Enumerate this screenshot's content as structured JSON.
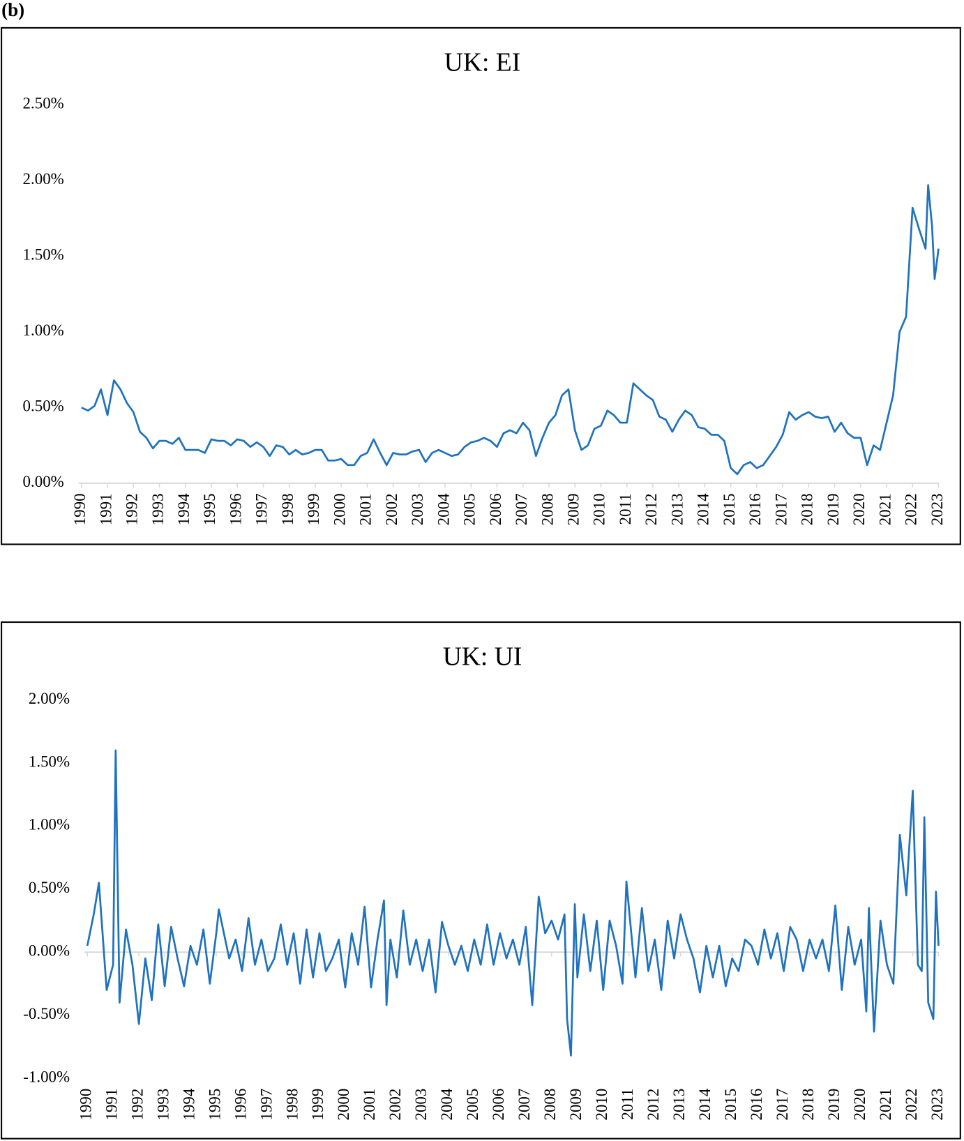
{
  "panel_label": "(b)",
  "chart_data": [
    {
      "type": "line",
      "title": "UK: EI",
      "color": "#1f72bd",
      "x": [
        1990,
        1990.25,
        1990.5,
        1990.75,
        1991,
        1991.25,
        1991.5,
        1991.75,
        1992,
        1992.25,
        1992.5,
        1992.75,
        1993,
        1993.25,
        1993.5,
        1993.75,
        1994,
        1994.25,
        1994.5,
        1994.75,
        1995,
        1995.25,
        1995.5,
        1995.75,
        1996,
        1996.25,
        1996.5,
        1996.75,
        1997,
        1997.25,
        1997.5,
        1997.75,
        1998,
        1998.25,
        1998.5,
        1998.75,
        1999,
        1999.25,
        1999.5,
        1999.75,
        2000,
        2000.25,
        2000.5,
        2000.75,
        2001,
        2001.25,
        2001.5,
        2001.75,
        2002,
        2002.25,
        2002.5,
        2002.75,
        2003,
        2003.25,
        2003.5,
        2003.75,
        2004,
        2004.25,
        2004.5,
        2004.75,
        2005,
        2005.25,
        2005.5,
        2005.75,
        2006,
        2006.25,
        2006.5,
        2006.75,
        2007,
        2007.25,
        2007.5,
        2007.75,
        2008,
        2008.25,
        2008.5,
        2008.75,
        2009,
        2009.25,
        2009.5,
        2009.75,
        2010,
        2010.25,
        2010.5,
        2010.75,
        2011,
        2011.25,
        2011.5,
        2011.75,
        2012,
        2012.25,
        2012.5,
        2012.75,
        2013,
        2013.25,
        2013.5,
        2013.75,
        2014,
        2014.25,
        2014.5,
        2014.75,
        2015,
        2015.25,
        2015.5,
        2015.75,
        2016,
        2016.25,
        2016.5,
        2016.75,
        2017,
        2017.25,
        2017.5,
        2017.75,
        2018,
        2018.25,
        2018.5,
        2018.75,
        2019,
        2019.25,
        2019.5,
        2019.75,
        2020,
        2020.25,
        2020.5,
        2020.75,
        2021,
        2021.25,
        2021.5,
        2021.75,
        2022,
        2022.25,
        2022.5,
        2022.6,
        2022.75,
        2022.85,
        2023
      ],
      "values": [
        0.5,
        0.48,
        0.51,
        0.62,
        0.45,
        0.68,
        0.62,
        0.53,
        0.47,
        0.34,
        0.3,
        0.23,
        0.28,
        0.28,
        0.26,
        0.3,
        0.22,
        0.22,
        0.22,
        0.2,
        0.29,
        0.28,
        0.28,
        0.25,
        0.29,
        0.28,
        0.24,
        0.27,
        0.24,
        0.18,
        0.25,
        0.24,
        0.19,
        0.22,
        0.19,
        0.2,
        0.22,
        0.22,
        0.15,
        0.15,
        0.16,
        0.12,
        0.12,
        0.18,
        0.2,
        0.29,
        0.2,
        0.12,
        0.2,
        0.19,
        0.19,
        0.21,
        0.22,
        0.14,
        0.2,
        0.22,
        0.2,
        0.18,
        0.19,
        0.24,
        0.27,
        0.28,
        0.3,
        0.28,
        0.24,
        0.33,
        0.35,
        0.33,
        0.4,
        0.35,
        0.18,
        0.3,
        0.4,
        0.45,
        0.58,
        0.62,
        0.35,
        0.22,
        0.25,
        0.36,
        0.38,
        0.48,
        0.45,
        0.4,
        0.4,
        0.66,
        0.62,
        0.58,
        0.55,
        0.44,
        0.42,
        0.34,
        0.42,
        0.48,
        0.45,
        0.37,
        0.36,
        0.32,
        0.32,
        0.28,
        0.1,
        0.06,
        0.12,
        0.14,
        0.1,
        0.12,
        0.18,
        0.24,
        0.32,
        0.47,
        0.42,
        0.45,
        0.47,
        0.44,
        0.43,
        0.44,
        0.34,
        0.4,
        0.33,
        0.3,
        0.3,
        0.12,
        0.25,
        0.22,
        0.4,
        0.58,
        1.0,
        1.1,
        1.82,
        1.68,
        1.55,
        1.97,
        1.7,
        1.35,
        1.55
      ],
      "xlim": [
        1990,
        2023
      ],
      "xticks": [
        1990,
        1991,
        1992,
        1993,
        1994,
        1995,
        1996,
        1997,
        1998,
        1999,
        2000,
        2001,
        2002,
        2003,
        2004,
        2005,
        2006,
        2007,
        2008,
        2009,
        2010,
        2011,
        2012,
        2013,
        2014,
        2015,
        2016,
        2017,
        2018,
        2019,
        2020,
        2021,
        2022,
        2023
      ],
      "ylim": [
        0,
        2.5
      ],
      "yticks": [
        {
          "value": 0,
          "label": "0.00%"
        },
        {
          "value": 0.5,
          "label": "0.50%"
        },
        {
          "value": 1,
          "label": "1.00%"
        },
        {
          "value": 1.5,
          "label": "1.50%"
        },
        {
          "value": 2,
          "label": "2.00%"
        },
        {
          "value": 2.5,
          "label": "2.50%"
        }
      ]
    },
    {
      "type": "line",
      "title": "UK: UI",
      "color": "#1f72bd",
      "x": [
        1990,
        1990.25,
        1990.45,
        1990.75,
        1991,
        1991.1,
        1991.25,
        1991.5,
        1991.75,
        1992,
        1992.25,
        1992.5,
        1992.75,
        1993,
        1993.25,
        1993.5,
        1993.75,
        1994,
        1994.25,
        1994.5,
        1994.75,
        1995,
        1995.1,
        1995.5,
        1995.75,
        1996,
        1996.25,
        1996.5,
        1996.75,
        1997,
        1997.25,
        1997.5,
        1997.75,
        1998,
        1998.25,
        1998.5,
        1998.75,
        1999,
        1999.25,
        1999.5,
        1999.75,
        2000,
        2000.25,
        2000.5,
        2000.75,
        2001,
        2001.25,
        2001.5,
        2001.6,
        2001.75,
        2002,
        2002.25,
        2002.5,
        2002.75,
        2003,
        2003.25,
        2003.5,
        2003.75,
        2004,
        2004.25,
        2004.5,
        2004.75,
        2005,
        2005.25,
        2005.5,
        2005.75,
        2006,
        2006.25,
        2006.5,
        2006.75,
        2007,
        2007.25,
        2007.5,
        2007.75,
        2008,
        2008.25,
        2008.5,
        2008.6,
        2008.75,
        2008.9,
        2009,
        2009.25,
        2009.5,
        2009.75,
        2010,
        2010.25,
        2010.5,
        2010.75,
        2010.9,
        2011.25,
        2011.5,
        2011.75,
        2012,
        2012.25,
        2012.5,
        2012.75,
        2013,
        2013.25,
        2013.5,
        2013.75,
        2014,
        2014.25,
        2014.5,
        2014.75,
        2015,
        2015.25,
        2015.5,
        2015.75,
        2016,
        2016.25,
        2016.5,
        2016.75,
        2017,
        2017.25,
        2017.5,
        2017.75,
        2018,
        2018.25,
        2018.5,
        2018.75,
        2019,
        2019.25,
        2019.5,
        2019.75,
        2020,
        2020.2,
        2020.3,
        2020.5,
        2020.75,
        2021,
        2021.25,
        2021.5,
        2021.75,
        2022,
        2022.2,
        2022.35,
        2022.45,
        2022.6,
        2022.8,
        2022.9,
        2023
      ],
      "values": [
        0.05,
        0.3,
        0.55,
        -0.3,
        -0.1,
        1.6,
        -0.4,
        0.18,
        -0.1,
        -0.57,
        -0.05,
        -0.38,
        0.22,
        -0.27,
        0.2,
        -0.05,
        -0.27,
        0.05,
        -0.1,
        0.18,
        -0.25,
        0.15,
        0.34,
        -0.05,
        0.1,
        -0.15,
        0.27,
        -0.1,
        0.1,
        -0.15,
        -0.05,
        0.22,
        -0.1,
        0.15,
        -0.25,
        0.18,
        -0.2,
        0.15,
        -0.15,
        -0.05,
        0.1,
        -0.28,
        0.15,
        -0.1,
        0.36,
        -0.28,
        0.1,
        0.41,
        -0.42,
        0.1,
        -0.2,
        0.33,
        -0.1,
        0.1,
        -0.15,
        0.1,
        -0.32,
        0.24,
        0.05,
        -0.1,
        0.05,
        -0.15,
        0.1,
        -0.1,
        0.22,
        -0.1,
        0.15,
        -0.05,
        0.1,
        -0.1,
        0.2,
        -0.42,
        0.44,
        0.15,
        0.25,
        0.1,
        0.3,
        -0.53,
        -0.82,
        0.38,
        -0.2,
        0.3,
        -0.15,
        0.25,
        -0.3,
        0.25,
        0.05,
        -0.25,
        0.56,
        -0.2,
        0.35,
        -0.15,
        0.1,
        -0.3,
        0.25,
        -0.05,
        0.3,
        0.1,
        -0.05,
        -0.32,
        0.05,
        -0.2,
        0.05,
        -0.27,
        -0.05,
        -0.15,
        0.1,
        0.05,
        -0.1,
        0.18,
        -0.05,
        0.15,
        -0.15,
        0.2,
        0.1,
        -0.15,
        0.1,
        -0.05,
        0.1,
        -0.15,
        0.37,
        -0.3,
        0.2,
        -0.1,
        0.1,
        -0.47,
        0.35,
        -0.63,
        0.25,
        -0.1,
        -0.25,
        0.93,
        0.45,
        1.28,
        -0.1,
        -0.15,
        1.07,
        -0.4,
        -0.53,
        0.48,
        0.05
      ],
      "xlim": [
        1990,
        2023
      ],
      "xticks": [
        1990,
        1991,
        1992,
        1993,
        1994,
        1995,
        1996,
        1997,
        1998,
        1999,
        2000,
        2001,
        2002,
        2003,
        2004,
        2005,
        2006,
        2007,
        2008,
        2009,
        2010,
        2011,
        2012,
        2013,
        2014,
        2015,
        2016,
        2017,
        2018,
        2019,
        2020,
        2021,
        2022,
        2023
      ],
      "ylim": [
        -1,
        2
      ],
      "yticks": [
        {
          "value": -1,
          "label": "-1.00%"
        },
        {
          "value": -0.5,
          "label": "-0.50%"
        },
        {
          "value": 0,
          "label": "0.00%"
        },
        {
          "value": 0.5,
          "label": "0.50%"
        },
        {
          "value": 1,
          "label": "1.00%"
        },
        {
          "value": 1.5,
          "label": "1.50%"
        },
        {
          "value": 2,
          "label": "2.00%"
        }
      ]
    }
  ]
}
